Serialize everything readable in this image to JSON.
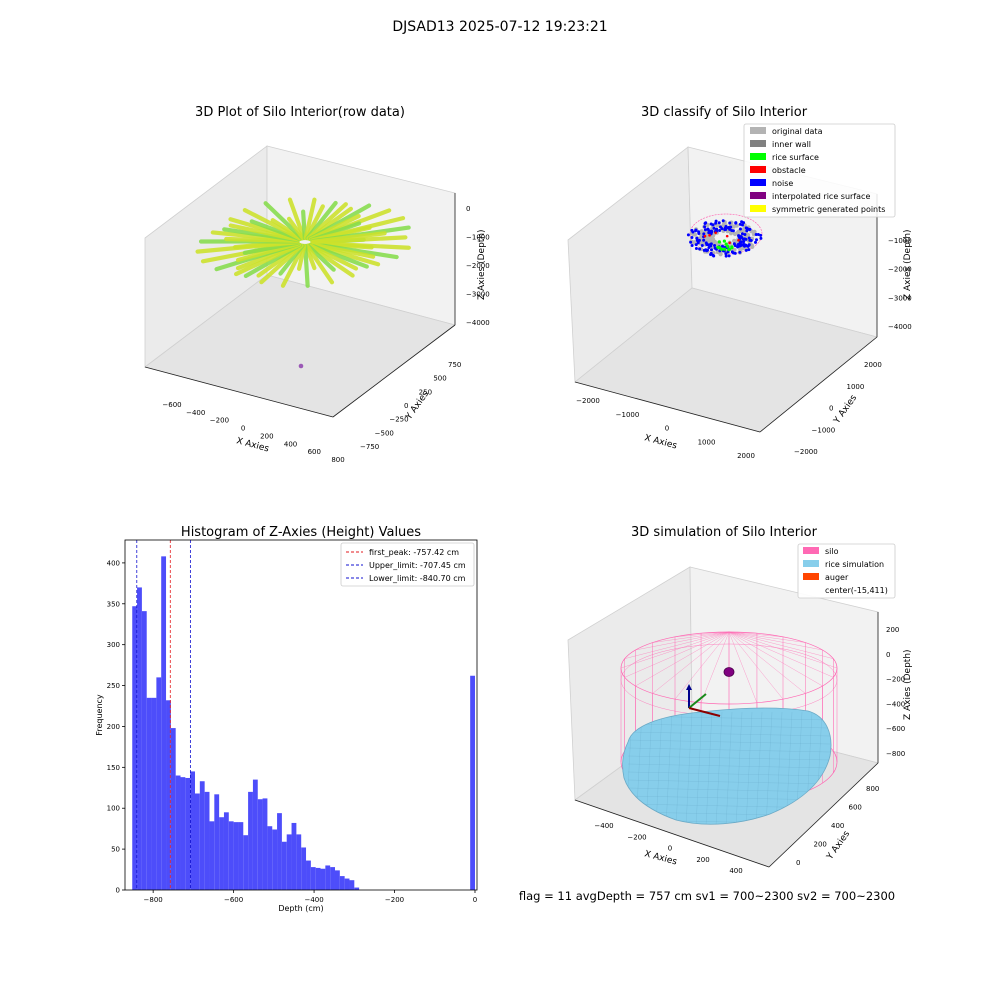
{
  "figure": {
    "suptitle": "DJSAD13 2025-07-12 19:23:21",
    "footer": "flag = 11   avgDepth = 757 cm  sv1 = 700~2300  sv2 = 700~2300"
  },
  "panel1": {
    "title": "3D Plot of Silo Interior(row data)",
    "xlabel": "X Axies",
    "ylabel": "Y Axies",
    "zlabel": "Z Axies (Depth)",
    "xticks": [
      "−600",
      "−400",
      "−200",
      "0",
      "200",
      "400",
      "600",
      "800"
    ],
    "yticks": [
      "−750",
      "−500",
      "−250",
      "0",
      "250",
      "500",
      "750"
    ],
    "zticks": [
      "0",
      "−1000",
      "−2000",
      "−3000",
      "−4000"
    ],
    "colors": {
      "point_a": "#cde22a",
      "point_b": "#86dd4c",
      "outlier": "#9b59b6"
    }
  },
  "panel2": {
    "title": "3D classify of Silo Interior",
    "xlabel": "X Axies",
    "ylabel": "Y Axies",
    "zlabel": "Z Axies (Depth)",
    "xticks": [
      "−2000",
      "−1000",
      "0",
      "1000",
      "2000"
    ],
    "yticks": [
      "−2000",
      "−1000",
      "0",
      "1000",
      "2000"
    ],
    "zticks": [
      "−1000",
      "−2000",
      "−3000",
      "−4000"
    ],
    "legend": [
      {
        "label": "original data",
        "color": "#b3b3b3"
      },
      {
        "label": "inner wall",
        "color": "#808080"
      },
      {
        "label": "rice surface",
        "color": "#00ff00"
      },
      {
        "label": "obstacle",
        "color": "#ff0000"
      },
      {
        "label": "noise",
        "color": "#0000ff"
      },
      {
        "label": "interpolated rice surface",
        "color": "#800080"
      },
      {
        "label": "symmetric generated points",
        "color": "#ffff00"
      }
    ]
  },
  "panel3": {
    "chart_data": {
      "type": "bar",
      "title": "Histogram of Z-Axies (Height) Values",
      "xlabel": "Depth (cm)",
      "ylabel": "Frequency",
      "xlim": [
        -870,
        5
      ],
      "ylim": [
        0,
        428
      ],
      "bin_width": 12,
      "bin_starts": [
        -852,
        -840,
        -828,
        -816,
        -804,
        -792,
        -780,
        -768,
        -756,
        -744,
        -732,
        -720,
        -708,
        -696,
        -684,
        -672,
        -660,
        -648,
        -636,
        -624,
        -612,
        -600,
        -588,
        -576,
        -564,
        -552,
        -540,
        -528,
        -516,
        -504,
        -492,
        -480,
        -468,
        -456,
        -444,
        -432,
        -420,
        -408,
        -396,
        -384,
        -372,
        -360,
        -348,
        -336,
        -324,
        -312,
        -300,
        -288,
        -276,
        -264,
        -252,
        -240,
        -228,
        -216,
        -204,
        -192,
        -180,
        -168,
        -156,
        -144,
        -132,
        -120,
        -108,
        -96,
        -12
      ],
      "values": [
        347,
        370,
        341,
        235,
        235,
        260,
        408,
        232,
        198,
        140,
        138,
        137,
        145,
        118,
        133,
        120,
        84,
        117,
        89,
        95,
        84,
        83,
        83,
        67,
        120,
        135,
        111,
        112,
        78,
        74,
        94,
        59,
        68,
        82,
        68,
        52,
        36,
        28,
        27,
        26,
        30,
        28,
        24,
        17,
        14,
        12,
        3,
        0,
        0,
        0,
        0,
        0,
        0,
        0,
        0,
        0,
        0,
        0,
        0,
        0,
        0,
        0,
        0,
        0,
        262
      ],
      "xticks": [
        -800,
        -600,
        -400,
        -200,
        0
      ],
      "xtick_labels": [
        "−800",
        "−600",
        "−400",
        "−200",
        "0"
      ],
      "yticks": [
        0,
        50,
        100,
        150,
        200,
        250,
        300,
        350,
        400
      ],
      "bar_color": "#4d4dfa",
      "vlines": [
        {
          "x": -757.42,
          "color": "#e31a1c",
          "label": "first_peak: -757.42 cm"
        },
        {
          "x": -707.45,
          "color": "#1010d0",
          "label": "Upper_limit: -707.45 cm"
        },
        {
          "x": -840.7,
          "color": "#1010d0",
          "label": "Lower_limit: -840.70 cm"
        }
      ]
    }
  },
  "panel4": {
    "title": "3D simulation of Silo Interior",
    "xlabel": "X Axies",
    "ylabel": "Y Axies",
    "zlabel": "Z Axies (Depth)",
    "xticks": [
      "−400",
      "−200",
      "0",
      "200",
      "400"
    ],
    "yticks": [
      "0",
      "200",
      "400",
      "600",
      "800"
    ],
    "zticks": [
      "200",
      "0",
      "−200",
      "−400",
      "−600",
      "−800"
    ],
    "legend": [
      {
        "label": "silo",
        "color": "#ff69b4"
      },
      {
        "label": "rice simulation",
        "color": "#87ceeb"
      },
      {
        "label": "auger",
        "color": "#ff4500"
      },
      {
        "label": "center(-15,411)",
        "color": ""
      }
    ]
  }
}
